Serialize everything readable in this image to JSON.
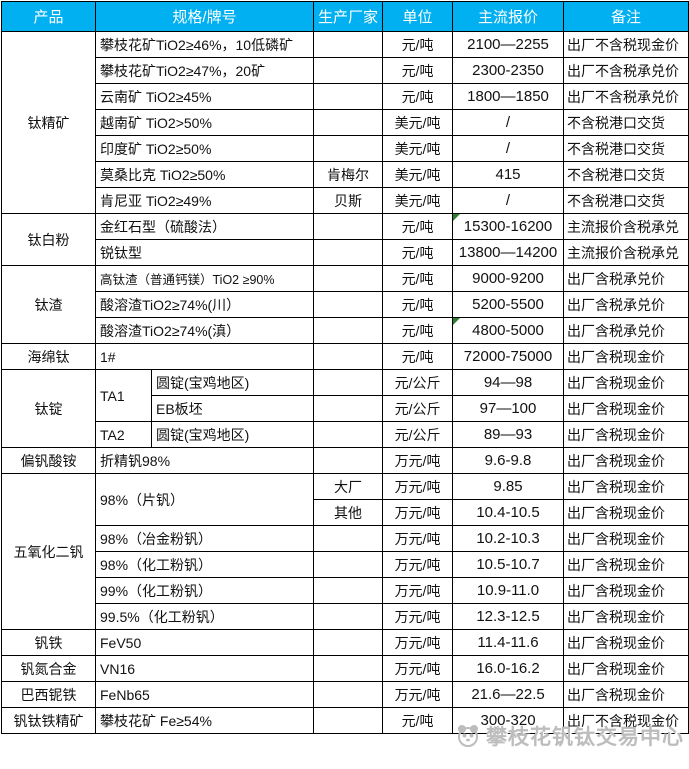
{
  "colors": {
    "header_bg": "#00b0f0",
    "header_text": "#ffffff",
    "border": "#000000",
    "comment_flag_green": "#2e7d32",
    "watermark_gray": "#bdbdbd"
  },
  "table": {
    "columns": [
      "产品",
      "规格/牌号",
      "生产厂家",
      "单位",
      "主流报价",
      "备注"
    ],
    "rows": [
      {
        "product": "钛精矿",
        "product_rowspan": 7,
        "spec": "攀枝花矿TiO2≥46%，10低磷矿",
        "maker": "",
        "unit": "元/吨",
        "price": "2100—2255",
        "note": "出厂不含税现金价"
      },
      {
        "spec": "攀枝花矿TiO2≥47%，20矿",
        "maker": "",
        "unit": "元/吨",
        "price": "2300-2350",
        "note": "出厂不含税承兑价"
      },
      {
        "spec": "云南矿 TiO2≥45%",
        "maker": "",
        "unit": "元/吨",
        "price": "1800—1850",
        "note": "出厂不含税承兑价"
      },
      {
        "spec": "越南矿 TiO2>50%",
        "maker": "",
        "unit": "美元/吨",
        "price": "/",
        "note": "不含税港口交货"
      },
      {
        "spec": "印度矿 TiO2≥50%",
        "maker": "",
        "unit": "美元/吨",
        "price": "/",
        "note": "不含税港口交货"
      },
      {
        "spec": "莫桑比克 TiO2≥50%",
        "maker": "肯梅尔",
        "unit": "美元/吨",
        "price": "415",
        "note": "不含税港口交货"
      },
      {
        "spec": "肯尼亚 TiO2≥49%",
        "maker": "贝斯",
        "unit": "美元/吨",
        "price": "/",
        "note": "不含税港口交货"
      },
      {
        "product": "钛白粉",
        "product_rowspan": 2,
        "spec": "金红石型（硫酸法）",
        "maker": "",
        "unit": "元/吨",
        "price": "15300-16200",
        "price_flag": true,
        "note": "主流报价含税承兑"
      },
      {
        "spec": "锐钛型",
        "maker": "",
        "unit": "元/吨",
        "price": "13800—14200",
        "note": "主流报价含税承兑"
      },
      {
        "product": "钛渣",
        "product_rowspan": 3,
        "spec": "高钛渣（普通钙镁）TiO2 ≥90%",
        "spec_small": true,
        "maker": "",
        "unit": "元/吨",
        "price": "9000-9200",
        "note": "出厂含税承兑价"
      },
      {
        "spec": "酸溶渣TiO2≥74%(川）",
        "maker": "",
        "unit": "元/吨",
        "price": "5200-5500",
        "note": "出厂含税承兑价"
      },
      {
        "spec": "酸溶渣TiO2≥74%(滇）",
        "maker": "",
        "unit": "元/吨",
        "price": "4800-5000",
        "price_flag": true,
        "note": "出厂含税承兑价"
      },
      {
        "product": "海绵钛",
        "product_rowspan": 1,
        "spec": "1#",
        "maker": "",
        "unit": "元/吨",
        "price": "72000-75000",
        "note": "出厂含税现金价"
      },
      {
        "product": "钛锭",
        "product_rowspan": 3,
        "spec_main": "TA1",
        "spec_main_rowspan": 2,
        "spec_sub": "圆锭(宝鸡地区)",
        "maker": "",
        "unit": "元/公斤",
        "price": "94—98",
        "note": "出厂含税现金价"
      },
      {
        "spec_sub": "EB板坯",
        "maker": "",
        "unit": "元/公斤",
        "price": "97—100",
        "note": "出厂含税现金价"
      },
      {
        "spec_main": "TA2",
        "spec_main_rowspan": 1,
        "spec_sub": "圆锭(宝鸡地区)",
        "maker": "",
        "unit": "元/公斤",
        "price": "89—93",
        "note": "出厂含税现金价"
      },
      {
        "product": "偏钒酸铵",
        "product_rowspan": 1,
        "spec": "折精钒98%",
        "maker": "",
        "unit": "万元/吨",
        "price": "9.6-9.8",
        "note": "出厂含税现金价"
      },
      {
        "product": "五氧化二钒",
        "product_rowspan": 6,
        "spec": "98%（片钒）",
        "spec_rowspan": 2,
        "maker": "大厂",
        "unit": "万元/吨",
        "price": "9.85",
        "note": "出厂含税现金价"
      },
      {
        "maker": "其他",
        "unit": "万元/吨",
        "price": "10.4-10.5",
        "note": "出厂含税现金价"
      },
      {
        "spec": "98%（冶金粉钒）",
        "maker": "",
        "unit": "万元/吨",
        "price": "10.2-10.3",
        "note": "出厂含税现金价"
      },
      {
        "spec": "98%（化工粉钒）",
        "maker": "",
        "unit": "万元/吨",
        "price": "10.5-10.7",
        "note": "出厂含税现金价"
      },
      {
        "spec": "99%（化工粉钒）",
        "maker": "",
        "unit": "万元/吨",
        "price": "10.9-11.0",
        "note": "出厂含税现金价"
      },
      {
        "spec": "99.5%（化工粉钒）",
        "maker": "",
        "unit": "万元/吨",
        "price": "12.3-12.5",
        "note": "出厂含税现金价"
      },
      {
        "product": "钒铁",
        "product_rowspan": 1,
        "spec": "FeV50",
        "maker": "",
        "unit": "万元/吨",
        "price": "11.4-11.6",
        "note": "出厂含税现金价"
      },
      {
        "product": "钒氮合金",
        "product_rowspan": 1,
        "spec": "VN16",
        "maker": "",
        "unit": "万元/吨",
        "price": "16.0-16.2",
        "note": "出厂含税现金价"
      },
      {
        "product": "巴西铌铁",
        "product_rowspan": 1,
        "spec": "FeNb65",
        "maker": "",
        "unit": "万元/吨",
        "price": "21.6—22.5",
        "note": "出厂含税现金价"
      },
      {
        "product": "钒钛铁精矿",
        "product_rowspan": 1,
        "spec": "攀枝花矿 Fe≥54%",
        "maker": "",
        "unit": "元/吨",
        "price": "300-320",
        "note": "出厂不含税现金价"
      }
    ]
  },
  "watermark": {
    "text": "攀枝花钒钛交易中心"
  }
}
